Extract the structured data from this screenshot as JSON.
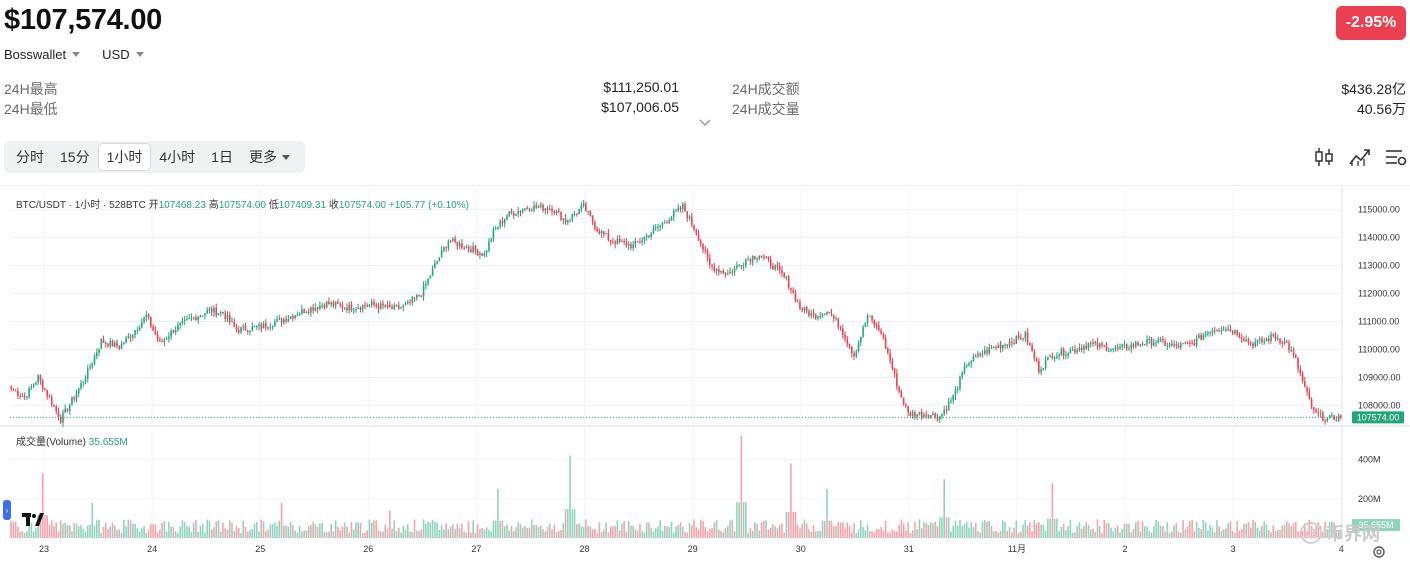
{
  "header": {
    "price": "$107,574.00",
    "change": "-2.95%",
    "exchange": "Bosswallet",
    "currency": "USD"
  },
  "stats": {
    "high_label": "24H最高",
    "high_value": "$111,250.01",
    "low_label": "24H最低",
    "low_value": "$107,006.05",
    "turnover_label": "24H成交额",
    "turnover_value": "$436.28亿",
    "volume_label": "24H成交量",
    "volume_value": "40.56万"
  },
  "tabs": [
    {
      "label": "分时"
    },
    {
      "label": "15分"
    },
    {
      "label": "1小时",
      "active": true
    },
    {
      "label": "4小时"
    },
    {
      "label": "1日"
    },
    {
      "label": "更多"
    }
  ],
  "toolbar_icons": [
    "candle-settings-icon",
    "indicator-icon",
    "chart-settings-icon"
  ],
  "legend": {
    "pair": "BTC/USDT · 1小时 · 528BTC",
    "open_label": "开",
    "open": "107468.23",
    "high_label": "高",
    "high": "107574.00",
    "low_label": "低",
    "low": "107409.31",
    "close_label": "收",
    "close": "107574.00",
    "change": "+105.77 (+0.10%)"
  },
  "volume_legend": {
    "label": "成交量(Volume)",
    "value": "35.655M"
  },
  "watermark": "币界网",
  "colors": {
    "up": "#22a57a",
    "down": "#ec3f4f",
    "up_volume": "#8fd3bd",
    "down_volume": "#f4a3ab",
    "badge": "#ec3f4f"
  },
  "chart_data": {
    "type": "candlestick",
    "price_axis_ticks": [
      "115000.00",
      "114000.00",
      "113000.00",
      "112000.00",
      "111000.00",
      "110000.00",
      "109000.00",
      "108000.00"
    ],
    "price_range": [
      107300,
      115700
    ],
    "last_price_label": "107574.00",
    "volume_axis_ticks": [
      "400M",
      "200M"
    ],
    "volume_range": [
      0,
      520
    ],
    "volume_current_label": "35.655M",
    "x_labels": [
      "23",
      "24",
      "25",
      "26",
      "27",
      "28",
      "29",
      "30",
      "31",
      "11月",
      "2",
      "3",
      "4"
    ],
    "keypoints": [
      [
        0,
        108600
      ],
      [
        6,
        108300
      ],
      [
        12,
        109000
      ],
      [
        18,
        108100
      ],
      [
        22,
        107500
      ],
      [
        28,
        108300
      ],
      [
        34,
        109200
      ],
      [
        40,
        110300
      ],
      [
        48,
        110100
      ],
      [
        54,
        110600
      ],
      [
        60,
        111200
      ],
      [
        66,
        110200
      ],
      [
        72,
        110700
      ],
      [
        80,
        111100
      ],
      [
        88,
        111400
      ],
      [
        94,
        111300
      ],
      [
        100,
        110700
      ],
      [
        110,
        110800
      ],
      [
        120,
        111050
      ],
      [
        130,
        111400
      ],
      [
        140,
        111650
      ],
      [
        150,
        111500
      ],
      [
        160,
        111600
      ],
      [
        170,
        111450
      ],
      [
        176,
        111600
      ],
      [
        182,
        112000
      ],
      [
        188,
        113000
      ],
      [
        194,
        113900
      ],
      [
        204,
        113600
      ],
      [
        210,
        113400
      ],
      [
        214,
        114200
      ],
      [
        220,
        114800
      ],
      [
        230,
        115100
      ],
      [
        240,
        115050
      ],
      [
        246,
        114600
      ],
      [
        254,
        115100
      ],
      [
        260,
        114300
      ],
      [
        266,
        113900
      ],
      [
        276,
        113700
      ],
      [
        286,
        114300
      ],
      [
        292,
        114700
      ],
      [
        298,
        115100
      ],
      [
        304,
        114200
      ],
      [
        310,
        113000
      ],
      [
        318,
        112700
      ],
      [
        326,
        113200
      ],
      [
        332,
        113400
      ],
      [
        338,
        113000
      ],
      [
        344,
        112500
      ],
      [
        350,
        111500
      ],
      [
        356,
        111200
      ],
      [
        362,
        111400
      ],
      [
        368,
        110800
      ],
      [
        374,
        109800
      ],
      [
        380,
        111200
      ],
      [
        386,
        110600
      ],
      [
        390,
        109600
      ],
      [
        394,
        108500
      ],
      [
        398,
        107700
      ],
      [
        406,
        107700
      ],
      [
        412,
        107600
      ],
      [
        418,
        108300
      ],
      [
        424,
        109500
      ],
      [
        434,
        110000
      ],
      [
        444,
        110300
      ],
      [
        450,
        110500
      ],
      [
        456,
        109300
      ],
      [
        462,
        109800
      ],
      [
        472,
        110000
      ],
      [
        478,
        110200
      ],
      [
        490,
        110000
      ],
      [
        500,
        110200
      ],
      [
        508,
        110300
      ],
      [
        516,
        110100
      ],
      [
        524,
        110200
      ],
      [
        532,
        110700
      ],
      [
        538,
        110800
      ],
      [
        544,
        110600
      ],
      [
        550,
        110200
      ],
      [
        556,
        110300
      ],
      [
        560,
        110500
      ],
      [
        566,
        110200
      ],
      [
        570,
        109600
      ],
      [
        574,
        108600
      ],
      [
        578,
        107750
      ],
      [
        584,
        107500
      ],
      [
        590,
        107574
      ]
    ],
    "volume_spikes": [
      [
        14,
        330
      ],
      [
        36,
        180
      ],
      [
        120,
        180
      ],
      [
        168,
        140
      ],
      [
        216,
        250
      ],
      [
        248,
        420
      ],
      [
        324,
        520
      ],
      [
        346,
        380
      ],
      [
        362,
        250
      ],
      [
        414,
        300
      ],
      [
        462,
        280
      ]
    ]
  }
}
